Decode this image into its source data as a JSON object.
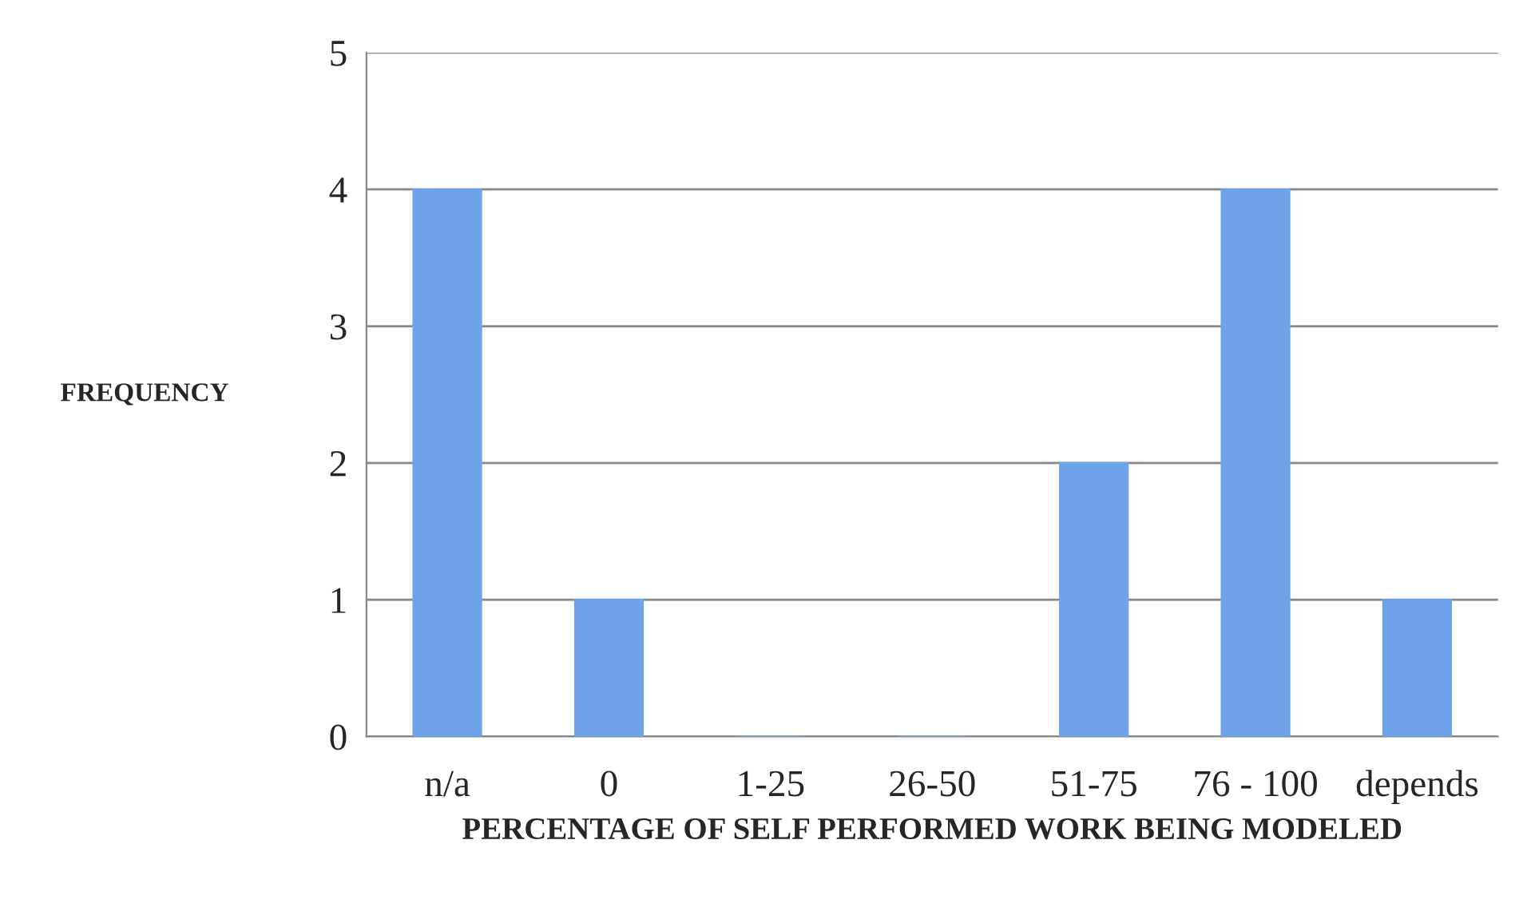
{
  "chart_data": {
    "type": "bar",
    "xlabel": "PERCENTAGE OF SELF PERFORMED WORK BEING MODELED",
    "ylabel": "FREQUENCY",
    "categories": [
      "n/a",
      "0",
      "1-25",
      "26-50",
      "51-75",
      "76 - 100",
      "depends"
    ],
    "values": [
      4,
      1,
      0,
      0,
      2,
      4,
      1
    ],
    "color": "#6ea3ea",
    "ylim": [
      0,
      5
    ],
    "yticks": [
      0,
      1,
      2,
      3,
      4,
      5
    ],
    "grid": "y"
  }
}
